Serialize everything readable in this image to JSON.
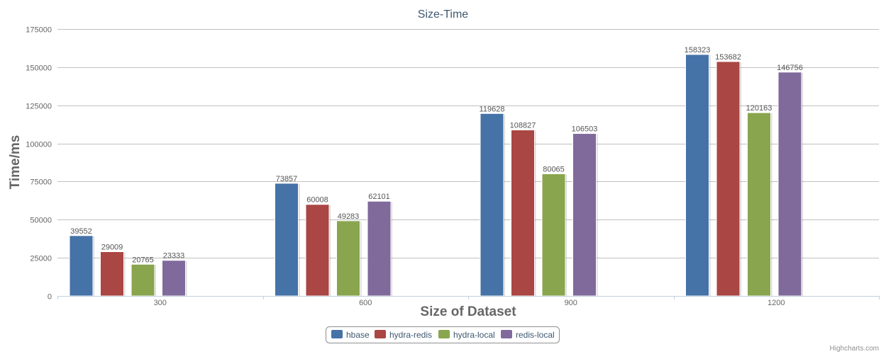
{
  "chart_data": {
    "type": "bar",
    "title": "Size-Time",
    "xlabel": "Size of Dataset",
    "ylabel": "Time/ms",
    "categories": [
      "300",
      "600",
      "900",
      "1200"
    ],
    "ylim": [
      0,
      175000
    ],
    "yticks": [
      0,
      25000,
      50000,
      75000,
      100000,
      125000,
      150000,
      175000
    ],
    "grid": true,
    "legend_position": "bottom-center",
    "series": [
      {
        "name": "hbase",
        "color": "#4572A7",
        "values": [
          39552,
          73857,
          119628,
          158323
        ]
      },
      {
        "name": "hydra-redis",
        "color": "#AA4643",
        "values": [
          29009,
          60008,
          108827,
          153682
        ]
      },
      {
        "name": "hydra-local",
        "color": "#89A54E",
        "values": [
          20765,
          49283,
          80065,
          120163
        ]
      },
      {
        "name": "redis-local",
        "color": "#80699B",
        "values": [
          23333,
          62101,
          106503,
          146756
        ]
      }
    ]
  },
  "credits": "Highcharts.com"
}
